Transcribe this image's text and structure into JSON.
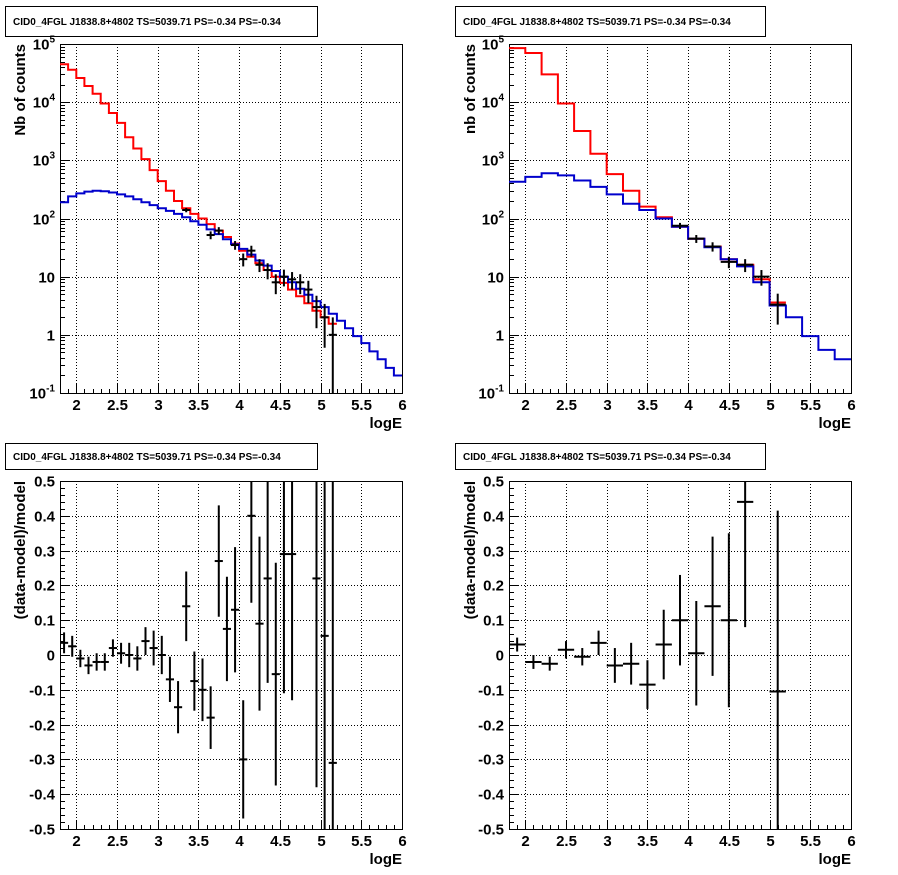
{
  "chart_data": [
    {
      "type": "line",
      "title": "CID0_4FGL J1838.8+4802 TS=5039.71 PS=-0.34 PS=-0.34",
      "xlabel": "logE",
      "ylabel": "Nb of counts",
      "xlim": [
        1.8,
        6.0
      ],
      "ylim": [
        0.1,
        100000
      ],
      "yscale": "log",
      "grid": true,
      "x_ticks": [
        "2",
        "2.5",
        "3",
        "3.5",
        "4",
        "4.5",
        "5",
        "5.5",
        "6"
      ],
      "y_ticks": [
        "10^-1",
        "1",
        "10",
        "10^2",
        "10^3",
        "10^4",
        "10^5"
      ],
      "bin_edges": [
        1.8,
        1.9,
        2.0,
        2.1,
        2.2,
        2.3,
        2.4,
        2.5,
        2.6,
        2.7,
        2.8,
        2.9,
        3.0,
        3.1,
        3.2,
        3.3,
        3.4,
        3.5,
        3.6,
        3.7,
        3.8,
        3.9,
        4.0,
        4.1,
        4.2,
        4.3,
        4.4,
        4.5,
        4.6,
        4.7,
        4.8,
        4.9,
        5.0,
        5.1,
        5.2,
        5.3,
        5.4,
        5.5,
        5.6,
        5.7,
        5.8,
        5.9,
        6.0
      ],
      "series": [
        {
          "color": "#ff0000",
          "style": "step",
          "values": [
            45000,
            36000,
            26000,
            19000,
            14000,
            9500,
            6500,
            4400,
            2500,
            1600,
            1050,
            680,
            440,
            300,
            200,
            150,
            120,
            100,
            80,
            62,
            48,
            37,
            28,
            22,
            17,
            13,
            10,
            7.8,
            6,
            4.6,
            3.5,
            2.6,
            2.0,
            1.55
          ]
        },
        {
          "color": "#0000cc",
          "style": "step",
          "values": [
            190,
            240,
            270,
            290,
            300,
            295,
            280,
            260,
            240,
            215,
            190,
            170,
            150,
            135,
            120,
            105,
            90,
            78,
            65,
            54,
            44,
            36,
            30,
            24,
            19,
            15.5,
            12.5,
            10,
            8,
            6.2,
            4.9,
            3.8,
            3.0,
            2.3,
            1.75,
            1.3,
            0.95,
            0.72,
            0.52,
            0.38,
            0.27,
            0.2,
            0.15
          ]
        },
        {
          "color": "#000000",
          "style": "points",
          "points": [
            {
              "x": 3.35,
              "y": 140,
              "err": 12
            },
            {
              "x": 3.65,
              "y": 52,
              "err": 8
            },
            {
              "x": 3.75,
              "y": 62,
              "err": 9
            },
            {
              "x": 3.95,
              "y": 35,
              "err": 6
            },
            {
              "x": 4.05,
              "y": 20,
              "err": 5
            },
            {
              "x": 4.15,
              "y": 28,
              "err": 6
            },
            {
              "x": 4.25,
              "y": 16,
              "err": 4
            },
            {
              "x": 4.35,
              "y": 13,
              "err": 4
            },
            {
              "x": 4.45,
              "y": 8,
              "err": 3
            },
            {
              "x": 4.55,
              "y": 10,
              "err": 3.2
            },
            {
              "x": 4.65,
              "y": 9,
              "err": 3
            },
            {
              "x": 4.75,
              "y": 8,
              "err": 3
            },
            {
              "x": 4.85,
              "y": 6,
              "err": 2.5
            },
            {
              "x": 4.95,
              "y": 3,
              "err": 1.7
            },
            {
              "x": 5.05,
              "y": 2,
              "err": 1.4
            },
            {
              "x": 5.15,
              "y": 1,
              "err": 1.0
            }
          ]
        }
      ]
    },
    {
      "type": "line",
      "title": "CID0_4FGL J1838.8+4802 TS=5039.71 PS=-0.34 PS=-0.34",
      "xlabel": "logE",
      "ylabel": "nb of counts",
      "xlim": [
        1.8,
        6.0
      ],
      "ylim": [
        0.1,
        100000
      ],
      "yscale": "log",
      "grid": true,
      "x_ticks": [
        "2",
        "2.5",
        "3",
        "3.5",
        "4",
        "4.5",
        "5",
        "5.5",
        "6"
      ],
      "y_ticks": [
        "10^-1",
        "1",
        "10",
        "10^2",
        "10^3",
        "10^4",
        "10^5"
      ],
      "bin_edges": [
        1.8,
        2.0,
        2.2,
        2.4,
        2.6,
        2.8,
        3.0,
        3.2,
        3.4,
        3.6,
        3.8,
        4.0,
        4.2,
        4.4,
        4.6,
        4.8,
        5.0,
        5.2,
        5.4,
        5.6,
        5.8,
        6.0
      ],
      "series": [
        {
          "color": "#ff0000",
          "style": "step",
          "values": [
            85000,
            70000,
            30000,
            9500,
            3200,
            1300,
            580,
            300,
            160,
            105,
            72,
            45,
            33,
            20,
            16,
            9,
            3.6
          ]
        },
        {
          "color": "#0000cc",
          "style": "step",
          "values": [
            430,
            520,
            600,
            550,
            450,
            350,
            260,
            180,
            140,
            100,
            72,
            45,
            32,
            20,
            15,
            8,
            3.2,
            2.0,
            0.95,
            0.55,
            0.38
          ]
        },
        {
          "color": "#000000",
          "style": "points",
          "points": [
            {
              "x": 3.9,
              "y": 75,
              "err": 9
            },
            {
              "x": 4.1,
              "y": 45,
              "err": 7
            },
            {
              "x": 4.3,
              "y": 33,
              "err": 6
            },
            {
              "x": 4.5,
              "y": 18,
              "err": 4
            },
            {
              "x": 4.7,
              "y": 16,
              "err": 4
            },
            {
              "x": 4.9,
              "y": 10,
              "err": 3
            },
            {
              "x": 5.1,
              "y": 3.3,
              "err": 1.8
            }
          ]
        }
      ]
    },
    {
      "type": "scatter",
      "title": "CID0_4FGL J1838.8+4802 TS=5039.71 PS=-0.34 PS=-0.34",
      "xlabel": "logE",
      "ylabel": "(data-model)/model",
      "xlim": [
        1.8,
        6.0
      ],
      "ylim": [
        -0.5,
        0.5
      ],
      "grid": true,
      "x_ticks": [
        "2",
        "2.5",
        "3",
        "3.5",
        "4",
        "4.5",
        "5",
        "5.5",
        "6"
      ],
      "y_ticks": [
        "-0.5",
        "-0.4",
        "-0.3",
        "-0.2",
        "-0.1",
        "0",
        "0.1",
        "0.2",
        "0.3",
        "0.4",
        "0.5"
      ],
      "xerr": 0.05,
      "points": [
        {
          "x": 1.85,
          "y": 0.035,
          "err": 0.03
        },
        {
          "x": 1.95,
          "y": 0.025,
          "err": 0.03
        },
        {
          "x": 2.05,
          "y": -0.01,
          "err": 0.025
        },
        {
          "x": 2.15,
          "y": -0.03,
          "err": 0.025
        },
        {
          "x": 2.25,
          "y": -0.02,
          "err": 0.025
        },
        {
          "x": 2.35,
          "y": -0.02,
          "err": 0.025
        },
        {
          "x": 2.45,
          "y": 0.02,
          "err": 0.025
        },
        {
          "x": 2.55,
          "y": 0.005,
          "err": 0.03
        },
        {
          "x": 2.65,
          "y": 0.0,
          "err": 0.035
        },
        {
          "x": 2.75,
          "y": -0.01,
          "err": 0.035
        },
        {
          "x": 2.85,
          "y": 0.04,
          "err": 0.04
        },
        {
          "x": 2.95,
          "y": 0.02,
          "err": 0.05
        },
        {
          "x": 3.05,
          "y": 0.0,
          "err": 0.055
        },
        {
          "x": 3.15,
          "y": -0.07,
          "err": 0.065
        },
        {
          "x": 3.25,
          "y": -0.15,
          "err": 0.075
        },
        {
          "x": 3.35,
          "y": 0.14,
          "err": 0.1
        },
        {
          "x": 3.45,
          "y": -0.075,
          "err": 0.085
        },
        {
          "x": 3.55,
          "y": -0.1,
          "err": 0.09
        },
        {
          "x": 3.65,
          "y": -0.18,
          "err": 0.09
        },
        {
          "x": 3.75,
          "y": 0.27,
          "err": 0.16
        },
        {
          "x": 3.85,
          "y": 0.075,
          "err": 0.15
        },
        {
          "x": 3.95,
          "y": 0.13,
          "err": 0.18
        },
        {
          "x": 4.05,
          "y": -0.3,
          "err": 0.17
        },
        {
          "x": 4.15,
          "y": 0.4,
          "err": 0.25
        },
        {
          "x": 4.25,
          "y": 0.09,
          "err": 0.25
        },
        {
          "x": 4.35,
          "y": 0.22,
          "err": 0.3
        },
        {
          "x": 4.45,
          "y": -0.055,
          "err": 0.32
        },
        {
          "x": 4.55,
          "y": 0.29,
          "err": 0.4
        },
        {
          "x": 4.65,
          "y": 0.29,
          "err": 0.42
        },
        {
          "x": 4.95,
          "y": 0.22,
          "err": 0.6
        },
        {
          "x": 5.05,
          "y": 0.055,
          "err": 0.7
        },
        {
          "x": 5.15,
          "y": -0.31,
          "err": 0.95
        }
      ]
    },
    {
      "type": "scatter",
      "title": "CID0_4FGL J1838.8+4802 TS=5039.71 PS=-0.34 PS=-0.34",
      "xlabel": "logE",
      "ylabel": "(data-model)/model",
      "xlim": [
        1.8,
        6.0
      ],
      "ylim": [
        -0.5,
        0.5
      ],
      "grid": true,
      "x_ticks": [
        "2",
        "2.5",
        "3",
        "3.5",
        "4",
        "4.5",
        "5",
        "5.5",
        "6"
      ],
      "y_ticks": [
        "-0.5",
        "-0.4",
        "-0.3",
        "-0.2",
        "-0.1",
        "0",
        "0.1",
        "0.2",
        "0.3",
        "0.4",
        "0.5"
      ],
      "xerr": 0.1,
      "points": [
        {
          "x": 1.9,
          "y": 0.03,
          "err": 0.02
        },
        {
          "x": 2.1,
          "y": -0.02,
          "err": 0.02
        },
        {
          "x": 2.3,
          "y": -0.025,
          "err": 0.02
        },
        {
          "x": 2.5,
          "y": 0.015,
          "err": 0.025
        },
        {
          "x": 2.7,
          "y": -0.005,
          "err": 0.025
        },
        {
          "x": 2.9,
          "y": 0.035,
          "err": 0.035
        },
        {
          "x": 3.1,
          "y": -0.03,
          "err": 0.05
        },
        {
          "x": 3.3,
          "y": -0.025,
          "err": 0.06
        },
        {
          "x": 3.5,
          "y": -0.085,
          "err": 0.07
        },
        {
          "x": 3.7,
          "y": 0.03,
          "err": 0.1
        },
        {
          "x": 3.9,
          "y": 0.1,
          "err": 0.13
        },
        {
          "x": 4.1,
          "y": 0.005,
          "err": 0.15
        },
        {
          "x": 4.3,
          "y": 0.14,
          "err": 0.2
        },
        {
          "x": 4.5,
          "y": 0.1,
          "err": 0.25
        },
        {
          "x": 4.7,
          "y": 0.44,
          "err": 0.36
        },
        {
          "x": 5.1,
          "y": -0.105,
          "err": 0.52
        }
      ]
    }
  ]
}
